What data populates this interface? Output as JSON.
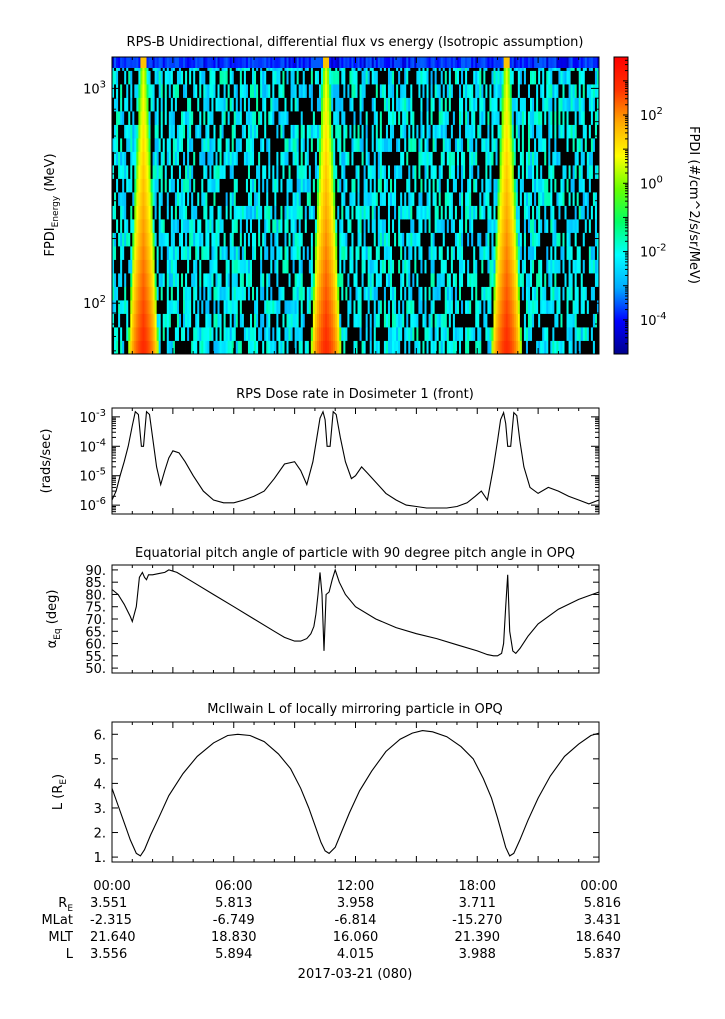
{
  "chart_data": [
    {
      "type": "heatmap",
      "title": "RPS-B  Unidirectional, differential flux vs energy (Isotropic assumption)",
      "ylabel": "FPDI",
      "ylabel_sub": "Energy",
      "ylabel_unit": " (MeV)",
      "yscale": "log",
      "ylim": [
        58,
        1400
      ],
      "y_ticks": [
        {
          "value": 100,
          "base": "10",
          "exp": "2"
        },
        {
          "value": 1000,
          "base": "10",
          "exp": "3"
        }
      ],
      "xlim_hours": [
        0,
        24
      ],
      "colorbar": {
        "label": "FPDI (#/cm^2/s/sr/MeV)",
        "scale": "log",
        "range": [
          1e-05,
          5000
        ],
        "colors": [
          "#00008c",
          "#0000ff",
          "#00aaff",
          "#00ffff",
          "#00ff66",
          "#66ff00",
          "#ffff00",
          "#ffaa00",
          "#ff3300",
          "#ff0000"
        ],
        "ticks": [
          {
            "value": 0.0001,
            "base": "10",
            "exp": "-4"
          },
          {
            "value": 0.01,
            "base": "10",
            "exp": "-2"
          },
          {
            "value": 1,
            "base": "10",
            "exp": "0"
          },
          {
            "value": 100,
            "base": "10",
            "exp": "2"
          }
        ]
      },
      "peak_times_hours": [
        1.5,
        10.5,
        19.4
      ],
      "peak_flux": 800,
      "top_band_flux": 0.0001
    },
    {
      "type": "line",
      "title": "RPS  Dose rate in Dosimeter 1 (front)",
      "ylabel": "(rads/sec)",
      "yscale": "log",
      "ylim": [
        5e-07,
        0.002
      ],
      "y_ticks": [
        {
          "value": 1e-06,
          "base": "10",
          "exp": "-6"
        },
        {
          "value": 1e-05,
          "base": "10",
          "exp": "-5"
        },
        {
          "value": 0.0001,
          "base": "10",
          "exp": "-4"
        },
        {
          "value": 0.001,
          "base": "10",
          "exp": "-3"
        }
      ],
      "xlim_hours": [
        0,
        24
      ],
      "series": [
        {
          "x": [
            0,
            0.2,
            0.4,
            0.6,
            0.8,
            1.0,
            1.15,
            1.3,
            1.45,
            1.55,
            1.7,
            1.85,
            2.0,
            2.2,
            2.4,
            2.6,
            2.8,
            3.0,
            3.3,
            3.6,
            4.0,
            4.5,
            5.0,
            5.5,
            6.0,
            6.5,
            7.0,
            7.5,
            8.0,
            8.5,
            9.0,
            9.3,
            9.6,
            9.9,
            10.1,
            10.25,
            10.4,
            10.5,
            10.6,
            10.75,
            10.9,
            11.05,
            11.25,
            11.5,
            11.8,
            12.0,
            12.3,
            12.6,
            13.0,
            13.5,
            14.0,
            14.5,
            15.0,
            15.5,
            16.0,
            16.5,
            17.0,
            17.5,
            17.9,
            18.2,
            18.5,
            18.8,
            19.0,
            19.15,
            19.3,
            19.4,
            19.5,
            19.65,
            19.8,
            19.95,
            20.1,
            20.3,
            20.6,
            21.0,
            21.5,
            22.0,
            22.5,
            23.0,
            23.5,
            24.0
          ],
          "y": [
            1.5e-06,
            3e-06,
            1e-05,
            3e-05,
            0.0001,
            0.0005,
            0.0015,
            0.0012,
            0.0001,
            0.0001,
            0.0015,
            0.0012,
            0.0002,
            2e-05,
            5e-06,
            1.5e-05,
            4e-05,
            7e-05,
            6e-05,
            3e-05,
            1e-05,
            3e-06,
            1.5e-06,
            1.2e-06,
            1.2e-06,
            1.5e-06,
            2e-06,
            3e-06,
            8e-06,
            2.5e-05,
            3e-05,
            1.5e-05,
            5e-06,
            3e-05,
            0.0002,
            0.0009,
            0.0015,
            0.0008,
            0.0001,
            0.0001,
            0.0015,
            0.0012,
            0.0002,
            3e-05,
            8e-06,
            1e-05,
            2e-05,
            1.2e-05,
            6e-06,
            2.5e-06,
            1.5e-06,
            1e-06,
            9e-07,
            8e-07,
            8e-07,
            8e-07,
            9e-07,
            1.2e-06,
            2e-06,
            3e-06,
            1.5e-06,
            2e-05,
            0.00015,
            0.0008,
            0.0014,
            0.0006,
            0.0001,
            0.0001,
            0.0014,
            0.0011,
            0.00015,
            2e-05,
            4e-06,
            2.5e-06,
            4e-06,
            3e-06,
            2e-06,
            1.5e-06,
            1.1e-06,
            1.5e-06
          ]
        }
      ]
    },
    {
      "type": "line",
      "title": "Equatorial pitch angle of particle with 90 degree pitch angle in OPQ",
      "ylabel_sym": "α",
      "ylabel_sub": "Eq",
      "ylabel_unit": " (deg)",
      "ylim": [
        48,
        92
      ],
      "y_ticks": [
        {
          "value": 50,
          "label": "50."
        },
        {
          "value": 55,
          "label": "55."
        },
        {
          "value": 60,
          "label": "60."
        },
        {
          "value": 65,
          "label": "65."
        },
        {
          "value": 70,
          "label": "70."
        },
        {
          "value": 75,
          "label": "75."
        },
        {
          "value": 80,
          "label": "80."
        },
        {
          "value": 85,
          "label": "85."
        },
        {
          "value": 90,
          "label": "90."
        }
      ],
      "xlim_hours": [
        0,
        24
      ],
      "series": [
        {
          "x": [
            0,
            0.3,
            0.6,
            0.9,
            1.0,
            1.2,
            1.35,
            1.5,
            1.6,
            1.7,
            1.8,
            2.0,
            2.3,
            2.6,
            2.8,
            3.2,
            4.0,
            5.0,
            6.0,
            7.0,
            8.0,
            8.5,
            9.0,
            9.3,
            9.6,
            9.8,
            9.95,
            10.05,
            10.15,
            10.25,
            10.35,
            10.45,
            10.55,
            10.7,
            10.85,
            11.0,
            11.2,
            11.5,
            12.0,
            13.0,
            14.0,
            15.0,
            16.0,
            17.0,
            18.0,
            18.5,
            18.8,
            19.0,
            19.2,
            19.3,
            19.4,
            19.5,
            19.6,
            19.75,
            19.9,
            20.1,
            20.5,
            21.0,
            22.0,
            23.0,
            24.0
          ],
          "y": [
            82,
            80,
            76,
            71,
            69,
            75,
            87,
            89,
            87,
            86,
            88,
            88,
            88.5,
            89,
            90,
            89,
            85,
            80,
            75,
            70,
            65,
            62.5,
            61,
            61,
            62,
            64,
            67,
            72,
            80,
            89,
            80,
            57,
            80,
            81,
            86,
            90,
            85,
            80,
            75,
            70,
            66.5,
            64,
            62,
            59.5,
            57,
            55.5,
            55,
            55,
            56,
            60,
            75,
            88,
            65,
            57,
            56,
            58,
            63,
            68,
            74,
            78,
            81
          ]
        }
      ]
    },
    {
      "type": "line",
      "title": "McIlwain L of locally mirroring particle in OPQ",
      "ylabel": "L (R",
      "ylabel_sub": "E",
      "ylabel_unit": ")",
      "ylim": [
        0.8,
        6.5
      ],
      "y_ticks": [
        {
          "value": 1,
          "label": "1."
        },
        {
          "value": 2,
          "label": "2."
        },
        {
          "value": 3,
          "label": "3."
        },
        {
          "value": 4,
          "label": "4."
        },
        {
          "value": 5,
          "label": "5."
        },
        {
          "value": 6,
          "label": "6."
        }
      ],
      "xlim_hours": [
        0,
        24
      ],
      "series": [
        {
          "x": [
            0,
            0.3,
            0.6,
            0.9,
            1.2,
            1.4,
            1.6,
            1.9,
            2.3,
            2.8,
            3.5,
            4.2,
            5.0,
            5.7,
            6.2,
            6.8,
            7.5,
            8.2,
            8.8,
            9.3,
            9.7,
            10.0,
            10.3,
            10.5,
            10.7,
            11.0,
            11.3,
            11.7,
            12.2,
            12.8,
            13.5,
            14.2,
            14.8,
            15.3,
            15.8,
            16.5,
            17.2,
            17.8,
            18.3,
            18.7,
            19.0,
            19.2,
            19.4,
            19.6,
            19.8,
            20.1,
            20.5,
            21.0,
            21.6,
            22.3,
            23.0,
            23.6,
            24.0
          ],
          "y": [
            3.8,
            3.1,
            2.4,
            1.7,
            1.15,
            1.05,
            1.3,
            1.9,
            2.6,
            3.5,
            4.4,
            5.1,
            5.65,
            5.95,
            6.0,
            5.95,
            5.7,
            5.2,
            4.6,
            3.8,
            3.0,
            2.3,
            1.6,
            1.25,
            1.15,
            1.4,
            2.0,
            2.8,
            3.7,
            4.5,
            5.3,
            5.8,
            6.05,
            6.15,
            6.1,
            5.9,
            5.5,
            5.0,
            4.2,
            3.4,
            2.6,
            2.0,
            1.4,
            1.05,
            1.15,
            1.7,
            2.5,
            3.4,
            4.3,
            5.1,
            5.6,
            5.95,
            6.05
          ]
        }
      ]
    }
  ],
  "x_axis": {
    "tick_labels": [
      "00:00",
      "06:00",
      "12:00",
      "18:00",
      "00:00"
    ],
    "date_label": "2017-03-21 (080)"
  },
  "ephemeris": {
    "rows": [
      {
        "label": "R",
        "sub": "E",
        "values": [
          "3.551",
          "5.813",
          "3.958",
          "3.711",
          "5.816"
        ]
      },
      {
        "label": "MLat",
        "sub": "",
        "values": [
          "-2.315",
          "-6.749",
          "-6.814",
          "-15.270",
          "3.431"
        ]
      },
      {
        "label": "MLT",
        "sub": "",
        "values": [
          "21.640",
          "18.830",
          "16.060",
          "21.390",
          "18.640"
        ]
      },
      {
        "label": "L",
        "sub": "",
        "values": [
          "3.556",
          "5.894",
          "4.015",
          "3.988",
          "5.837"
        ]
      }
    ]
  }
}
